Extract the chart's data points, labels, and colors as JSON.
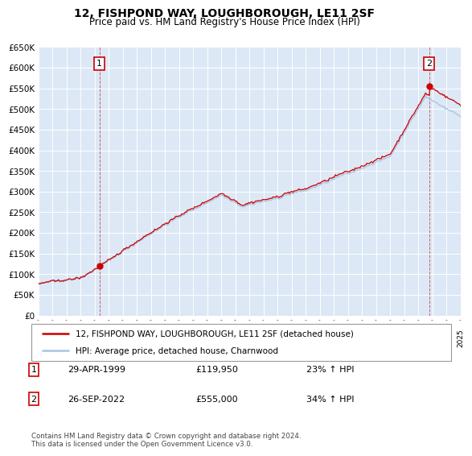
{
  "title": "12, FISHPOND WAY, LOUGHBOROUGH, LE11 2SF",
  "subtitle": "Price paid vs. HM Land Registry's House Price Index (HPI)",
  "legend_line1": "12, FISHPOND WAY, LOUGHBOROUGH, LE11 2SF (detached house)",
  "legend_line2": "HPI: Average price, detached house, Charnwood",
  "annotation1_date": "29-APR-1999",
  "annotation1_price": "£119,950",
  "annotation1_hpi": "23% ↑ HPI",
  "annotation2_date": "26-SEP-2022",
  "annotation2_price": "£555,000",
  "annotation2_hpi": "34% ↑ HPI",
  "footer": "Contains HM Land Registry data © Crown copyright and database right 2024.\nThis data is licensed under the Open Government Licence v3.0.",
  "hpi_color": "#aac4e0",
  "price_color": "#cc0000",
  "background_color": "#dce8f5",
  "ylim": [
    0,
    650000
  ],
  "yticks": [
    0,
    50000,
    100000,
    150000,
    200000,
    250000,
    300000,
    350000,
    400000,
    450000,
    500000,
    550000,
    600000,
    650000
  ],
  "sale1_x": 1999.33,
  "sale1_y": 119950,
  "sale2_x": 2022.75,
  "sale2_y": 555000,
  "xmin": 1995,
  "xmax": 2025
}
